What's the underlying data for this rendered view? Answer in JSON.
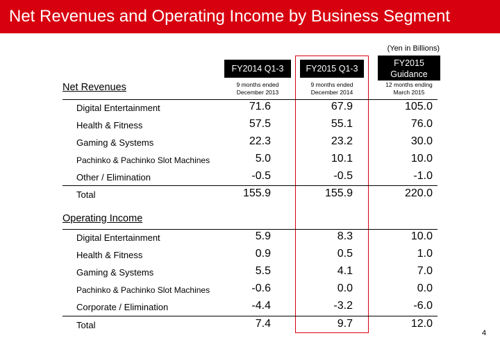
{
  "title": "Net Revenues and Operating Income by Business Segment",
  "unit_note": "(Yen in Billions)",
  "columns": [
    {
      "label": "FY2014 Q1-3",
      "sub": "9 months ended\nDecember 2013"
    },
    {
      "label": "FY2015 Q1-3",
      "sub": "9 months ended\nDecember 2014"
    },
    {
      "label": "FY2015\nGuidance",
      "sub": "12 months ending\nMarch 2015"
    }
  ],
  "net_revenues": {
    "title": "Net Revenues",
    "rows": [
      {
        "label": "Digital Entertainment",
        "values": [
          "71.6",
          "67.9",
          "105.0"
        ]
      },
      {
        "label": "Health & Fitness",
        "values": [
          "57.5",
          "55.1",
          "76.0"
        ]
      },
      {
        "label": "Gaming & Systems",
        "values": [
          "22.3",
          "23.2",
          "30.0"
        ]
      },
      {
        "label": "Pachinko & Pachinko Slot Machines",
        "values": [
          "5.0",
          "10.1",
          "10.0"
        ]
      },
      {
        "label": "Other / Elimination",
        "values": [
          "-0.5",
          "-0.5",
          "-1.0"
        ]
      }
    ],
    "total": {
      "label": "Total",
      "values": [
        "155.9",
        "155.9",
        "220.0"
      ]
    }
  },
  "operating_income": {
    "title": "Operating Income",
    "rows": [
      {
        "label": "Digital Entertainment",
        "values": [
          "5.9",
          "8.3",
          "10.0"
        ]
      },
      {
        "label": "Health & Fitness",
        "values": [
          "0.9",
          "0.5",
          "1.0"
        ]
      },
      {
        "label": "Gaming & Systems",
        "values": [
          "5.5",
          "4.1",
          "7.0"
        ]
      },
      {
        "label": "Pachinko & Pachinko Slot Machines",
        "values": [
          "-0.6",
          "0.0",
          "0.0"
        ]
      },
      {
        "label": "Corporate / Elimination",
        "values": [
          "-4.4",
          "-3.2",
          "-6.0"
        ]
      }
    ],
    "total": {
      "label": "Total",
      "values": [
        "7.4",
        "9.7",
        "12.0"
      ]
    }
  },
  "page_number": "4",
  "colors": {
    "brand_red": "#d7000f",
    "header_black": "#000000"
  }
}
